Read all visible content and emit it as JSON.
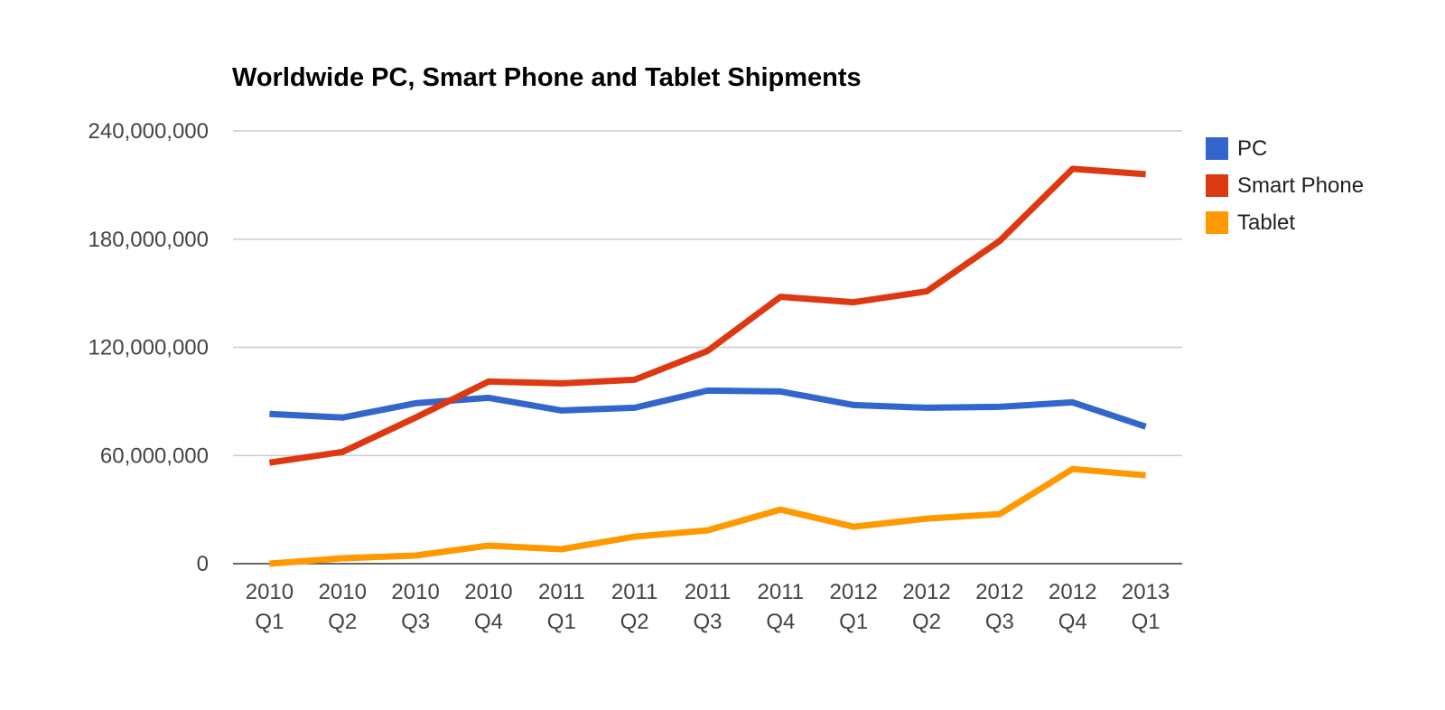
{
  "chart_data": {
    "type": "line",
    "title": "Worldwide PC, Smart Phone and Tablet Shipments",
    "xlabel": "",
    "ylabel": "",
    "categories": [
      [
        "2010",
        "Q1"
      ],
      [
        "2010",
        "Q2"
      ],
      [
        "2010",
        "Q3"
      ],
      [
        "2010",
        "Q4"
      ],
      [
        "2011",
        "Q1"
      ],
      [
        "2011",
        "Q2"
      ],
      [
        "2011",
        "Q3"
      ],
      [
        "2011",
        "Q4"
      ],
      [
        "2012",
        "Q1"
      ],
      [
        "2012",
        "Q2"
      ],
      [
        "2012",
        "Q3"
      ],
      [
        "2012",
        "Q4"
      ],
      [
        "2013",
        "Q1"
      ]
    ],
    "ylim": [
      0,
      240000000
    ],
    "yticks": [
      0,
      60000000,
      120000000,
      180000000,
      240000000
    ],
    "ytick_labels": [
      "0",
      "60,000,000",
      "120,000,000",
      "180,000,000",
      "240,000,000"
    ],
    "grid": true,
    "legend_position": "right",
    "series": [
      {
        "name": "PC",
        "color": "#3366cc",
        "values": [
          83000000,
          81000000,
          89000000,
          92000000,
          85000000,
          86500000,
          96000000,
          95500000,
          88000000,
          86500000,
          87000000,
          89500000,
          76000000
        ]
      },
      {
        "name": "Smart Phone",
        "color": "#dc3912",
        "values": [
          56000000,
          62000000,
          81000000,
          101000000,
          100000000,
          102000000,
          118000000,
          148000000,
          145000000,
          151000000,
          179000000,
          219000000,
          216000000
        ]
      },
      {
        "name": "Tablet",
        "color": "#ff9900",
        "values": [
          0,
          3000000,
          4500000,
          10000000,
          8000000,
          15000000,
          18500000,
          30000000,
          20500000,
          25000000,
          27500000,
          52500000,
          49000000
        ]
      }
    ]
  }
}
